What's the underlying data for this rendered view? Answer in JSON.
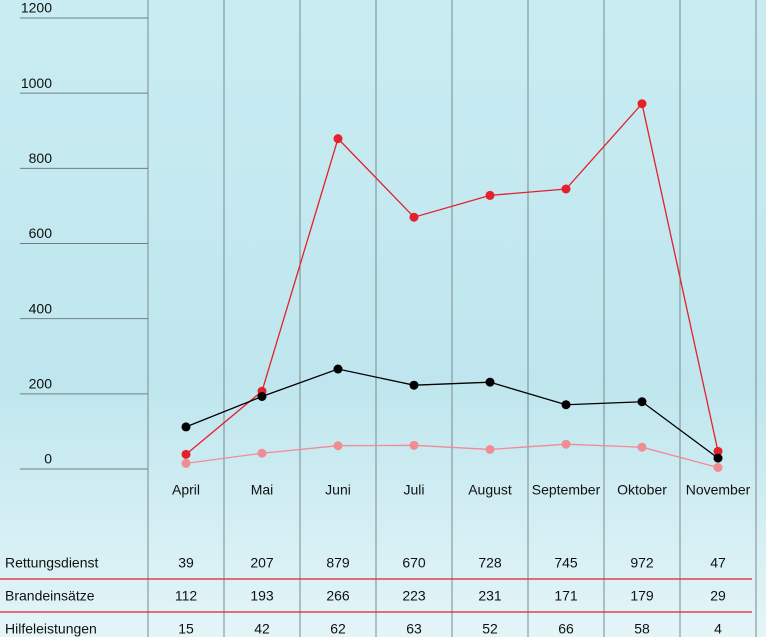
{
  "chart_data": {
    "type": "line",
    "categories": [
      "April",
      "Mai",
      "Juni",
      "Juli",
      "August",
      "September",
      "Oktober",
      "November"
    ],
    "series": [
      {
        "name": "Rettungsdienst",
        "color": "#e4202b",
        "values": [
          39,
          207,
          879,
          670,
          728,
          745,
          972,
          47
        ]
      },
      {
        "name": "Brandeinsätze",
        "color": "#000000",
        "values": [
          112,
          193,
          266,
          223,
          231,
          171,
          179,
          29
        ]
      },
      {
        "name": "Hilfeleistungen",
        "color": "#f08c93",
        "values": [
          15,
          42,
          62,
          63,
          52,
          66,
          58,
          4
        ]
      }
    ],
    "ylim": [
      0,
      1200
    ],
    "yticks": [
      0,
      200,
      400,
      600,
      800,
      1000,
      1200
    ],
    "grid": true
  }
}
